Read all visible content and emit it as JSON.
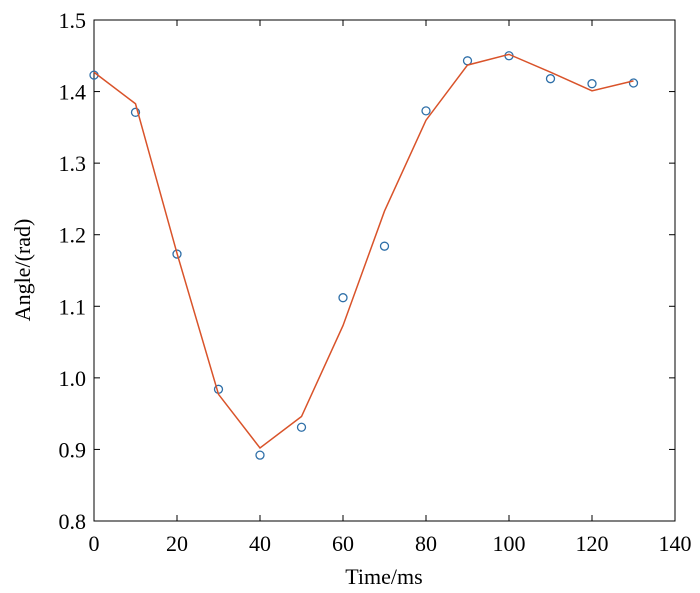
{
  "chart_data": {
    "type": "scatter",
    "xlabel": "Time/ms",
    "ylabel": "Angle/(rad)",
    "xlim": [
      0,
      140
    ],
    "ylim": [
      0.8,
      1.5
    ],
    "xticks": [
      0,
      20,
      40,
      60,
      80,
      100,
      120,
      140
    ],
    "yticks": [
      0.8,
      0.9,
      {
        "value": 1,
        "label": "1.0"
      },
      1.1,
      1.2,
      1.3,
      1.4,
      1.5
    ],
    "series": [
      {
        "style": "markers",
        "color": "#2e6fa8",
        "x": [
          0,
          10,
          20,
          30,
          40,
          50,
          60,
          70,
          80,
          90,
          100,
          110,
          120,
          130
        ],
        "values": [
          1.423,
          1.371,
          1.173,
          0.984,
          0.892,
          0.931,
          1.112,
          1.184,
          1.373,
          1.443,
          1.45,
          1.418,
          1.411,
          1.412
        ]
      },
      {
        "style": "line",
        "color": "#d9532a",
        "x": [
          0,
          10,
          20,
          30,
          40,
          50,
          60,
          70,
          80,
          90,
          100,
          110,
          120,
          130
        ],
        "values": [
          1.427,
          1.383,
          1.174,
          0.977,
          0.902,
          0.946,
          1.073,
          1.233,
          1.36,
          1.437,
          1.452,
          1.427,
          1.401,
          1.415
        ]
      }
    ]
  }
}
